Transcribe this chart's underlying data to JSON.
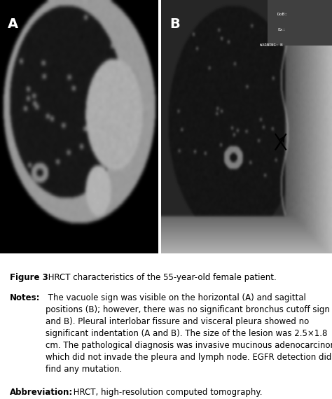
{
  "figure_caption": "Figure 3",
  "figure_caption_rest": " HRCT characteristics of the 55-year-old female patient.",
  "notes_label": "Notes:",
  "notes_text": " The vacuole sign was visible on the horizontal (",
  "notes_A1": "A",
  "notes_text2": ") and sagittal positions (",
  "notes_B1": "B",
  "notes_text3": "); however, there was no significant bronchus cutoff sign (",
  "notes_A2": "A",
  "notes_text4": " and ",
  "notes_B2": "B",
  "notes_text5": "). Pleural interlobar fissure and visceral pleura showed no significant indentation (",
  "notes_A3": "A",
  "notes_text6": " and ",
  "notes_B3": "B",
  "notes_text7": "). The size of the lesion was 2.5×1.8 cm. The pathological diagnosis was invasive mucinous adenocarcinoma, which did not invade the pleura and lymph node. EGFR detection did not find any mutation.",
  "abbrev_label": "Abbreviation:",
  "abbrev_text": " HRCT, high-resolution computed tomography.",
  "label_A": "A",
  "label_B": "B",
  "bg_color": "#ffffff",
  "text_color": "#000000",
  "image_bg_left": "#000000",
  "image_bg_right": "#1a1a2e",
  "font_size_caption": 8.5,
  "font_size_labels": 14
}
